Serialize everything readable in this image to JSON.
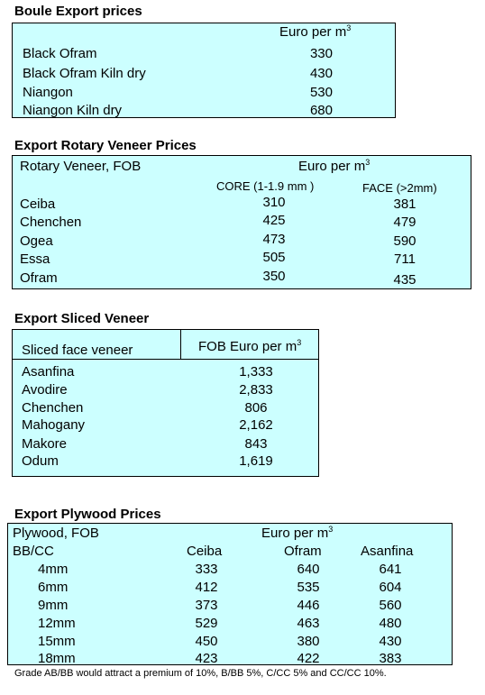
{
  "boule": {
    "title": "Boule Export prices",
    "header": "Euro per m",
    "header_sup": "3",
    "rows": [
      {
        "name": "Black Ofram",
        "value": "330"
      },
      {
        "name": "Black Ofram  Kiln dry",
        "value": "430"
      },
      {
        "name": "Niangon",
        "value": "530"
      },
      {
        "name": "Niangon Kiln dry",
        "value": "680"
      }
    ]
  },
  "rotary": {
    "title": "Export Rotary Veneer Prices",
    "label": "Rotary Veneer,  FOB",
    "header": "Euro  per m",
    "header_sup": "3",
    "col1": "CORE (1-1.9 mm )",
    "col2": "FACE (>2mm)",
    "rows": [
      {
        "name": "Ceiba",
        "core": "310",
        "face": "381"
      },
      {
        "name": "Chenchen",
        "core": "425",
        "face": "479"
      },
      {
        "name": "Ogea",
        "core": "473",
        "face": "590"
      },
      {
        "name": "Essa",
        "core": "505",
        "face": "711"
      },
      {
        "name": "Ofram",
        "core": "350",
        "face": "435"
      }
    ]
  },
  "sliced": {
    "title": "Export Sliced Veneer",
    "label": "Sliced face veneer",
    "header": "FOB Euro per m",
    "header_sup": "3",
    "rows": [
      {
        "name": "Asanfina",
        "value": "1,333"
      },
      {
        "name": "Avodire",
        "value": "2,833"
      },
      {
        "name": "Chenchen",
        "value": "806"
      },
      {
        "name": "Mahogany",
        "value": "2,162"
      },
      {
        "name": "Makore",
        "value": "843"
      },
      {
        "name": "Odum",
        "value": "1,619"
      }
    ]
  },
  "plywood": {
    "title": "Export Plywood Prices",
    "label": "Plywood, FOB",
    "header": "Euro per m",
    "header_sup": "3",
    "grade": "BB/CC",
    "col1": "Ceiba",
    "col2": "Ofram",
    "col3": "Asanfina",
    "rows": [
      {
        "size": "4mm",
        "ceiba": "333",
        "ofram": "640",
        "asanfina": "641"
      },
      {
        "size": "6mm",
        "ceiba": "412",
        "ofram": "535",
        "asanfina": "604"
      },
      {
        "size": "9mm",
        "ceiba": "373",
        "ofram": "446",
        "asanfina": "560"
      },
      {
        "size": "12mm",
        "ceiba": "529",
        "ofram": "463",
        "asanfina": "480"
      },
      {
        "size": "15mm",
        "ceiba": "450",
        "ofram": "380",
        "asanfina": "430"
      },
      {
        "size": "18mm",
        "ceiba": "423",
        "ofram": "422",
        "asanfina": "383"
      }
    ],
    "footnote": "Grade AB/BB would attract a premium of 10%, B/BB 5%, C/CC 5% and CC/CC 10%."
  }
}
